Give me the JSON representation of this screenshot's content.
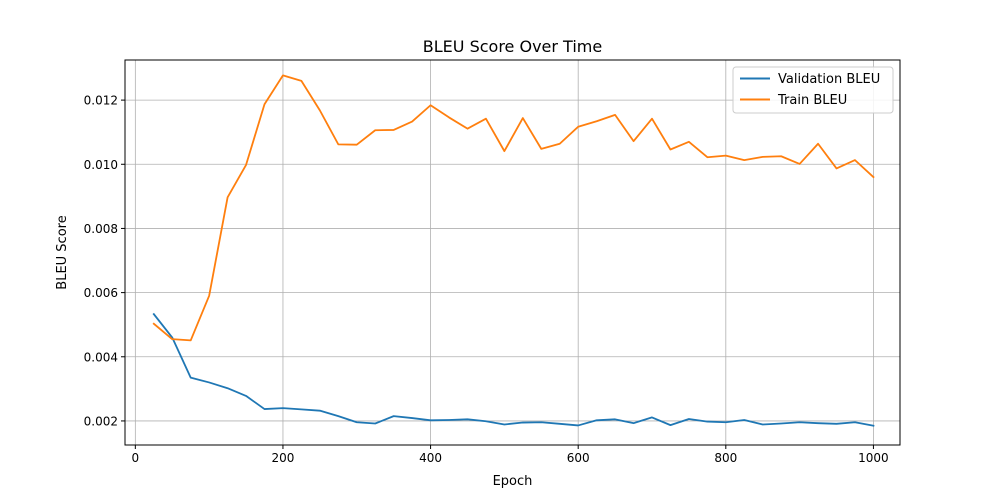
{
  "chart_data": {
    "type": "line",
    "title": "BLEU Score Over Time",
    "xlabel": "Epoch",
    "ylabel": "BLEU Score",
    "xlim": [
      -14,
      1036
    ],
    "ylim": [
      0.00125,
      0.01325
    ],
    "xticks": [
      0,
      200,
      400,
      600,
      800,
      1000
    ],
    "xtick_labels": [
      "0",
      "200",
      "400",
      "600",
      "800",
      "1000"
    ],
    "yticks": [
      0.002,
      0.004,
      0.006,
      0.008,
      0.01,
      0.012
    ],
    "ytick_labels": [
      "0.002",
      "0.004",
      "0.006",
      "0.008",
      "0.010",
      "0.012"
    ],
    "grid": true,
    "legend_position": "top-right",
    "x": [
      25,
      50,
      75,
      100,
      125,
      150,
      175,
      200,
      225,
      250,
      275,
      300,
      325,
      350,
      375,
      400,
      425,
      450,
      475,
      500,
      525,
      550,
      575,
      600,
      625,
      650,
      675,
      700,
      725,
      750,
      775,
      800,
      825,
      850,
      875,
      900,
      925,
      950,
      975,
      1000
    ],
    "series": [
      {
        "name": "Validation BLEU",
        "color": "#1f77b4",
        "values": [
          0.00533,
          0.0046,
          0.00335,
          0.0032,
          0.00302,
          0.00278,
          0.00237,
          0.0024,
          0.00236,
          0.00232,
          0.00215,
          0.00196,
          0.00192,
          0.00215,
          0.00209,
          0.00202,
          0.00203,
          0.00205,
          0.00199,
          0.00189,
          0.00195,
          0.00196,
          0.00191,
          0.00186,
          0.00202,
          0.00205,
          0.00193,
          0.00211,
          0.00187,
          0.00206,
          0.00198,
          0.00196,
          0.00203,
          0.00189,
          0.00192,
          0.00196,
          0.00193,
          0.00191,
          0.00196,
          0.00185
        ]
      },
      {
        "name": "Train BLEU",
        "color": "#ff7f0e",
        "values": [
          0.00503,
          0.00455,
          0.00451,
          0.0059,
          0.00897,
          0.00998,
          0.01187,
          0.01277,
          0.0126,
          0.01168,
          0.01062,
          0.01061,
          0.01106,
          0.01107,
          0.01133,
          0.01184,
          0.01146,
          0.01111,
          0.01142,
          0.01041,
          0.01144,
          0.01048,
          0.01064,
          0.01117,
          0.01134,
          0.01154,
          0.01072,
          0.01142,
          0.01046,
          0.0107,
          0.01022,
          0.01027,
          0.01013,
          0.01023,
          0.01025,
          0.01001,
          0.01064,
          0.00987,
          0.01013,
          0.0096
        ]
      }
    ]
  }
}
